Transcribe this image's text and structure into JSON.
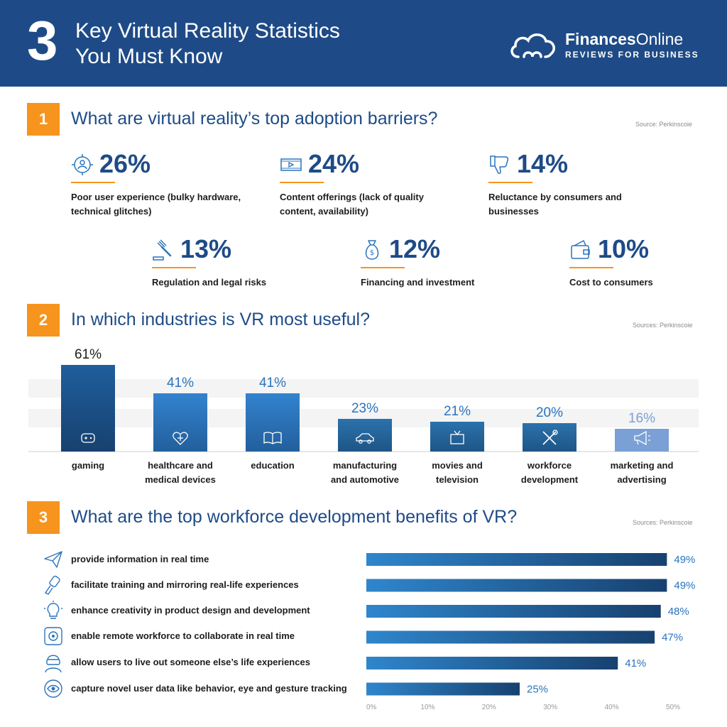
{
  "header": {
    "number": "3",
    "title_line1": "Key Virtual Reality Statistics",
    "title_line2": "You Must Know",
    "logo_name_bold": "Finances",
    "logo_name_rest": "Online",
    "logo_tagline": "REVIEWS FOR BUSINESS"
  },
  "colors": {
    "header_bg": "#1e4b87",
    "accent": "#f7941d",
    "bar_dark": "#17416f",
    "bar_mid": "#2a74bd",
    "bar_light": "#7aa0d6"
  },
  "section1": {
    "badge": "1",
    "title": "What are virtual reality’s top adoption barriers?",
    "source": "Source: Perkinscoie",
    "stats": [
      {
        "value": "26%",
        "label": "Poor user experience (bulky hardware, technical glitches)",
        "icon": "user-target-icon"
      },
      {
        "value": "24%",
        "label": "Content offerings (lack of quality content, availability)",
        "icon": "film-strip-icon"
      },
      {
        "value": "14%",
        "label": "Reluctance by consumers and businesses",
        "icon": "thumbs-down-icon"
      },
      {
        "value": "13%",
        "label": "Regulation and legal risks",
        "icon": "gavel-icon"
      },
      {
        "value": "12%",
        "label": "Financing and investment",
        "icon": "money-bag-icon"
      },
      {
        "value": "10%",
        "label": "Cost to consumers",
        "icon": "wallet-icon"
      }
    ]
  },
  "section2": {
    "badge": "2",
    "title": "In which industries is VR most useful?",
    "source": "Sources: Perkinscoie"
  },
  "section3": {
    "badge": "3",
    "title": "What are the top workforce development benefits of VR?",
    "source": "Sources: Perkinscoie",
    "benefits": [
      {
        "label": "provide information in real time",
        "icon": "paper-plane-icon"
      },
      {
        "label": "facilitate training and mirroring real-life experiences",
        "icon": "vr-controller-icon"
      },
      {
        "label": "enhance creativity in product design and development",
        "icon": "lightbulb-icon"
      },
      {
        "label": "enable remote workforce to collaborate in real time",
        "icon": "speaker-icon"
      },
      {
        "label": "allow users to live out someone else’s life experiences",
        "icon": "vr-headset-user-icon"
      },
      {
        "label": "capture novel user data like behavior, eye and gesture tracking",
        "icon": "eye-tracking-icon"
      }
    ]
  },
  "chart_data": [
    {
      "type": "bar",
      "categories": [
        "gaming",
        "healthcare and medical devices",
        "education",
        "manufacturing and automotive",
        "movies and television",
        "workforce development",
        "marketing and advertising"
      ],
      "category_lines": [
        [
          "gaming"
        ],
        [
          "healthcare and",
          "medical devices"
        ],
        [
          "education"
        ],
        [
          "manufacturing",
          "and automotive"
        ],
        [
          "movies and",
          "television"
        ],
        [
          "workforce",
          "development"
        ],
        [
          "marketing and",
          "advertising"
        ]
      ],
      "values": [
        61,
        41,
        41,
        23,
        21,
        20,
        16
      ],
      "value_labels": [
        "61%",
        "41%",
        "41%",
        "23%",
        "21%",
        "20%",
        "16%"
      ],
      "icons": [
        "gamepad-icon",
        "heart-plus-icon",
        "book-icon",
        "car-icon",
        "tv-icon",
        "tools-icon",
        "megaphone-icon"
      ],
      "ylim": [
        0,
        61
      ]
    },
    {
      "type": "bar",
      "orientation": "horizontal",
      "categories": [
        "provide information in real time",
        "facilitate training and mirroring real-life experiences",
        "enhance creativity in product design and development",
        "enable remote workforce to collaborate in real time",
        "allow users to live out someone else’s life experiences",
        "capture novel user data like behavior, eye and gesture tracking"
      ],
      "values": [
        49,
        49,
        48,
        47,
        41,
        25
      ],
      "value_labels": [
        "49%",
        "49%",
        "48%",
        "47%",
        "41%",
        "25%"
      ],
      "xticks": [
        "0%",
        "10%",
        "20%",
        "30%",
        "40%",
        "50%"
      ],
      "xlim": [
        0,
        50
      ]
    }
  ]
}
